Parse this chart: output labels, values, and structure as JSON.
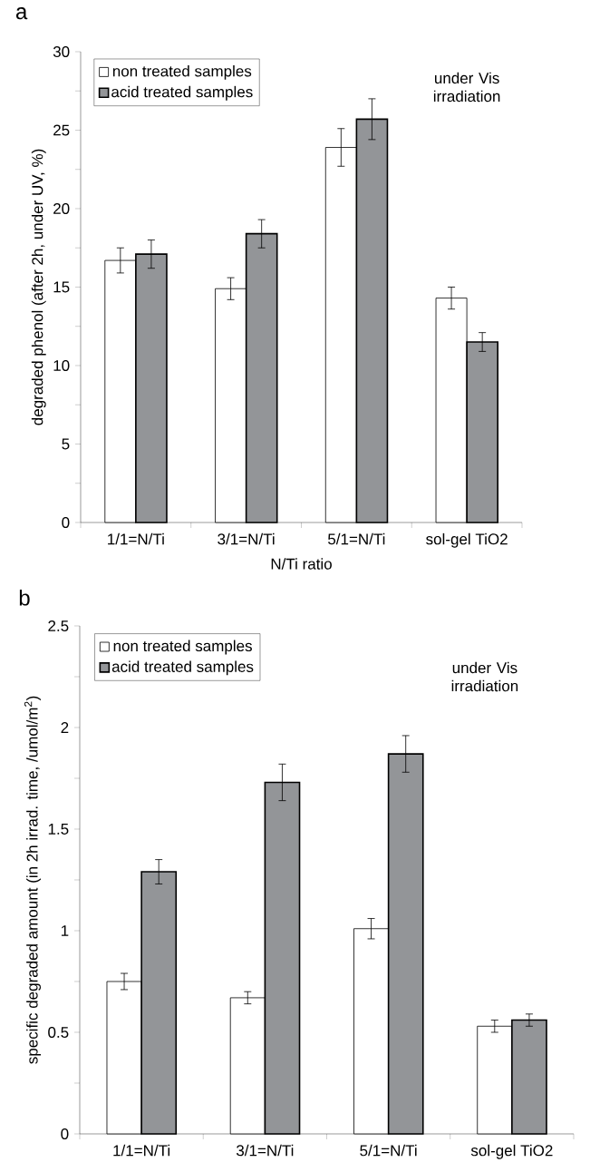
{
  "chart_data": [
    {
      "type": "bar",
      "title": "a",
      "categories": [
        "1/1=N/Ti",
        "3/1=N/Ti",
        "5/1=N/Ti",
        "sol-gel TiO2"
      ],
      "xlabel": "N/Ti ratio",
      "ylabel": "degraded phenol (after 2h, under UV, %)",
      "series": [
        {
          "name": "non treated samples",
          "color": "#ffffff",
          "values": [
            16.7,
            14.9,
            23.9,
            14.3
          ],
          "errors": [
            0.8,
            0.7,
            1.2,
            0.7
          ]
        },
        {
          "name": "acid treated samples",
          "color": "#939598",
          "values": [
            17.1,
            18.4,
            25.7,
            11.5
          ],
          "errors": [
            0.9,
            0.9,
            1.3,
            0.6
          ]
        }
      ],
      "ylim": [
        0,
        30
      ],
      "yticks": [
        0,
        {
          "value": 2.5,
          "label": null
        },
        5,
        {
          "value": 7.5,
          "label": null
        },
        10,
        {
          "value": 12.5,
          "label": null
        },
        15,
        {
          "value": 17.5,
          "label": null
        },
        20,
        {
          "value": 22.5,
          "label": null
        },
        25,
        {
          "value": 27.5,
          "label": null
        },
        30
      ],
      "annotations": [
        "under Vis irradiation"
      ],
      "legend": "top left"
    },
    {
      "type": "bar",
      "title": "b",
      "categories": [
        "1/1=N/Ti",
        "3/1=N/Ti",
        "5/1=N/Ti",
        "sol-gel TiO2"
      ],
      "ylabel": "specific degraded amount (in 2h irrad. time, /umol/m$^{2}$)",
      "series": [
        {
          "name": "non treated samples",
          "color": "#ffffff",
          "values": [
            0.75,
            0.67,
            1.01,
            0.53
          ],
          "errors": [
            0.04,
            0.03,
            0.05,
            0.03
          ]
        },
        {
          "name": "acid treated samples",
          "color": "#939598",
          "values": [
            1.29,
            1.73,
            1.87,
            0.56
          ],
          "errors": [
            0.06,
            0.09,
            0.09,
            0.03
          ]
        }
      ],
      "ylim": [
        0,
        2.5
      ],
      "yticks": [
        0,
        {
          "value": 0.25,
          "label": null
        },
        0.5,
        {
          "value": 0.75,
          "label": null
        },
        1,
        {
          "value": 1.25,
          "label": null
        },
        1.5,
        {
          "value": 1.75,
          "label": null
        },
        2,
        {
          "value": 2.25,
          "label": null
        },
        2.5
      ],
      "annotations": [
        "under Vis irradiation"
      ],
      "legend": "top left"
    }
  ]
}
